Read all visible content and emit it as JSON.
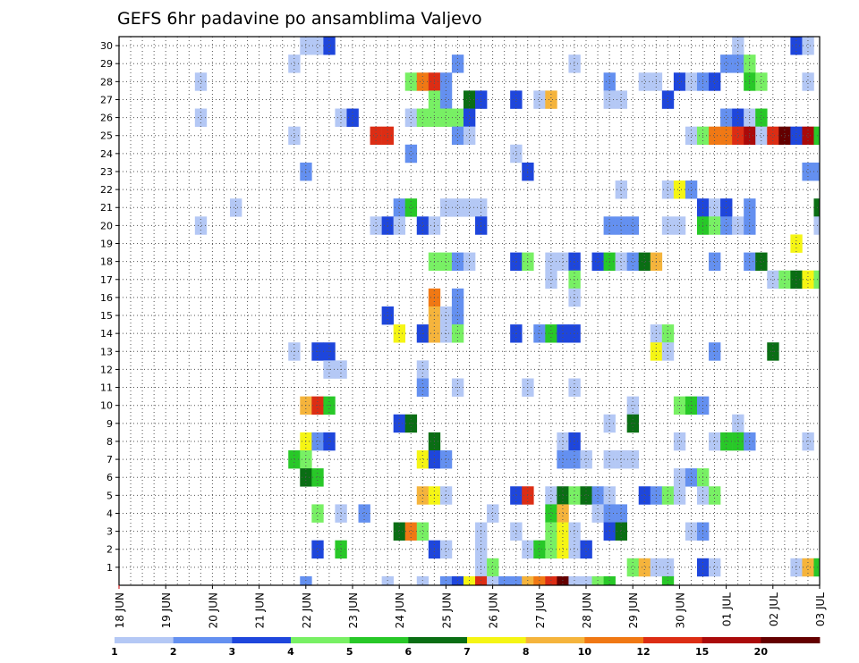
{
  "chart_data": {
    "type": "heatmap",
    "title": "GEFS 6hr padavine po ansamblima Valjevo",
    "xlabel": "",
    "ylabel": "",
    "x_tick_labels": [
      "18 JUN",
      "19 JUN",
      "20 JUN",
      "21 JUN",
      "22 JUN",
      "23 JUN",
      "24 JUN",
      "25 JUN",
      "26 JUN",
      "27 JUN",
      "28 JUN",
      "29 JUN",
      "30 JUN",
      "01 JUL",
      "02 JUL",
      "03 JUL"
    ],
    "x_tick_positions": [
      0,
      4,
      8,
      12,
      16,
      20,
      24,
      28,
      32,
      36,
      40,
      44,
      48,
      52,
      56,
      60
    ],
    "y_tick_labels": [
      "1",
      "2",
      "3",
      "4",
      "5",
      "6",
      "7",
      "8",
      "9",
      "10",
      "11",
      "12",
      "13",
      "14",
      "15",
      "16",
      "17",
      "18",
      "19",
      "20",
      "21",
      "22",
      "23",
      "24",
      "25",
      "26",
      "27",
      "28",
      "29",
      "30"
    ],
    "xlim": [
      0,
      60
    ],
    "ylim": [
      0,
      30
    ],
    "grid": true,
    "colorbar": {
      "labels": [
        "1",
        "2",
        "3",
        "4",
        "5",
        "6",
        "7",
        "8",
        "10",
        "12",
        "15",
        "20"
      ],
      "colors": [
        "#b4c8f5",
        "#6490f0",
        "#1e46dc",
        "#78f064",
        "#28c828",
        "#0a6e14",
        "#f5f514",
        "#f5b43c",
        "#f07814",
        "#dc2d14",
        "#aa0a0a",
        "#640000"
      ]
    },
    "palette": {
      "1": "#b4c8f5",
      "2": "#6490f0",
      "3": "#1e46dc",
      "4": "#78f064",
      "5": "#28c828",
      "6": "#0a6e14",
      "7": "#f5f514",
      "8": "#f5b43c",
      "9": "#f07814",
      "10": "#dc2d14",
      "11": "#aa0a0a",
      "12": "#640000"
    },
    "members": [
      {
        "member": 30,
        "cells": [
          [
            16,
            1
          ],
          [
            17,
            1
          ],
          [
            18,
            3
          ],
          [
            53,
            1
          ],
          [
            58,
            3
          ],
          [
            59,
            1
          ]
        ]
      },
      {
        "member": 29,
        "cells": [
          [
            15,
            1
          ],
          [
            29,
            2
          ],
          [
            39,
            1
          ],
          [
            52,
            2
          ],
          [
            53,
            2
          ],
          [
            54,
            4
          ]
        ]
      },
      {
        "member": 28,
        "cells": [
          [
            7,
            1
          ],
          [
            25,
            4
          ],
          [
            26,
            9
          ],
          [
            27,
            10
          ],
          [
            28,
            2
          ],
          [
            42,
            2
          ],
          [
            45,
            1
          ],
          [
            46,
            1
          ],
          [
            48,
            3
          ],
          [
            49,
            1
          ],
          [
            50,
            2
          ],
          [
            51,
            3
          ],
          [
            54,
            5
          ],
          [
            55,
            4
          ],
          [
            59,
            1
          ]
        ]
      },
      {
        "member": 27,
        "cells": [
          [
            27,
            4
          ],
          [
            28,
            2
          ],
          [
            30,
            6
          ],
          [
            31,
            3
          ],
          [
            34,
            3
          ],
          [
            36,
            1
          ],
          [
            37,
            8
          ],
          [
            42,
            1
          ],
          [
            43,
            1
          ],
          [
            47,
            3
          ]
        ]
      },
      {
        "member": 26,
        "cells": [
          [
            7,
            1
          ],
          [
            19,
            1
          ],
          [
            20,
            3
          ],
          [
            25,
            1
          ],
          [
            26,
            4
          ],
          [
            27,
            4
          ],
          [
            28,
            4
          ],
          [
            29,
            4
          ],
          [
            30,
            3
          ],
          [
            52,
            2
          ],
          [
            53,
            3
          ],
          [
            54,
            1
          ],
          [
            55,
            5
          ]
        ]
      },
      {
        "member": 25,
        "cells": [
          [
            15,
            1
          ],
          [
            22,
            10
          ],
          [
            23,
            10
          ],
          [
            29,
            2
          ],
          [
            30,
            1
          ],
          [
            49,
            1
          ],
          [
            50,
            4
          ],
          [
            51,
            9
          ],
          [
            52,
            9
          ],
          [
            53,
            10
          ],
          [
            54,
            11
          ],
          [
            55,
            1
          ],
          [
            56,
            10
          ],
          [
            57,
            12
          ],
          [
            58,
            3
          ],
          [
            59,
            11
          ],
          [
            60,
            5
          ]
        ]
      },
      {
        "member": 24,
        "cells": [
          [
            25,
            2
          ],
          [
            34,
            1
          ]
        ]
      },
      {
        "member": 23,
        "cells": [
          [
            16,
            2
          ],
          [
            35,
            3
          ],
          [
            59,
            2
          ],
          [
            60,
            2
          ]
        ]
      },
      {
        "member": 22,
        "cells": [
          [
            43,
            1
          ],
          [
            47,
            1
          ],
          [
            48,
            7
          ],
          [
            49,
            2
          ]
        ]
      },
      {
        "member": 21,
        "cells": [
          [
            10,
            1
          ],
          [
            24,
            2
          ],
          [
            25,
            5
          ],
          [
            28,
            1
          ],
          [
            29,
            1
          ],
          [
            30,
            1
          ],
          [
            31,
            1
          ],
          [
            50,
            3
          ],
          [
            51,
            1
          ],
          [
            52,
            3
          ],
          [
            54,
            2
          ],
          [
            60,
            6
          ]
        ]
      },
      {
        "member": 20,
        "cells": [
          [
            7,
            1
          ],
          [
            22,
            1
          ],
          [
            23,
            3
          ],
          [
            24,
            1
          ],
          [
            26,
            3
          ],
          [
            27,
            1
          ],
          [
            31,
            3
          ],
          [
            42,
            2
          ],
          [
            43,
            2
          ],
          [
            44,
            2
          ],
          [
            47,
            1
          ],
          [
            48,
            1
          ],
          [
            50,
            5
          ],
          [
            51,
            4
          ],
          [
            52,
            2
          ],
          [
            53,
            1
          ],
          [
            54,
            2
          ],
          [
            60,
            1
          ]
        ]
      },
      {
        "member": 19,
        "cells": [
          [
            58,
            7
          ]
        ]
      },
      {
        "member": 18,
        "cells": [
          [
            27,
            4
          ],
          [
            28,
            4
          ],
          [
            29,
            2
          ],
          [
            30,
            1
          ],
          [
            34,
            3
          ],
          [
            35,
            4
          ],
          [
            37,
            1
          ],
          [
            38,
            1
          ],
          [
            39,
            3
          ],
          [
            41,
            3
          ],
          [
            42,
            5
          ],
          [
            43,
            1
          ],
          [
            44,
            2
          ],
          [
            45,
            6
          ],
          [
            46,
            8
          ],
          [
            51,
            2
          ],
          [
            54,
            2
          ],
          [
            55,
            6
          ]
        ]
      },
      {
        "member": 17,
        "cells": [
          [
            37,
            1
          ],
          [
            39,
            4
          ],
          [
            56,
            1
          ],
          [
            57,
            4
          ],
          [
            58,
            6
          ],
          [
            59,
            7
          ],
          [
            60,
            4
          ]
        ]
      },
      {
        "member": 16,
        "cells": [
          [
            27,
            9
          ],
          [
            29,
            2
          ],
          [
            39,
            1
          ]
        ]
      },
      {
        "member": 15,
        "cells": [
          [
            23,
            3
          ],
          [
            27,
            8
          ],
          [
            28,
            1
          ],
          [
            29,
            2
          ]
        ]
      },
      {
        "member": 14,
        "cells": [
          [
            24,
            7
          ],
          [
            26,
            3
          ],
          [
            27,
            8
          ],
          [
            28,
            1
          ],
          [
            29,
            4
          ],
          [
            34,
            3
          ],
          [
            36,
            2
          ],
          [
            37,
            5
          ],
          [
            38,
            3
          ],
          [
            39,
            3
          ],
          [
            46,
            1
          ],
          [
            47,
            4
          ]
        ]
      },
      {
        "member": 13,
        "cells": [
          [
            15,
            1
          ],
          [
            17,
            3
          ],
          [
            18,
            3
          ],
          [
            46,
            7
          ],
          [
            47,
            1
          ],
          [
            51,
            2
          ],
          [
            56,
            6
          ]
        ]
      },
      {
        "member": 12,
        "cells": [
          [
            18,
            1
          ],
          [
            19,
            1
          ],
          [
            26,
            1
          ]
        ]
      },
      {
        "member": 11,
        "cells": [
          [
            26,
            2
          ],
          [
            29,
            1
          ],
          [
            35,
            1
          ],
          [
            39,
            1
          ]
        ]
      },
      {
        "member": 10,
        "cells": [
          [
            16,
            8
          ],
          [
            17,
            10
          ],
          [
            18,
            5
          ],
          [
            44,
            1
          ],
          [
            48,
            4
          ],
          [
            49,
            5
          ],
          [
            50,
            2
          ]
        ]
      },
      {
        "member": 9,
        "cells": [
          [
            24,
            3
          ],
          [
            25,
            6
          ],
          [
            42,
            1
          ],
          [
            44,
            6
          ],
          [
            53,
            1
          ]
        ]
      },
      {
        "member": 8,
        "cells": [
          [
            16,
            7
          ],
          [
            17,
            2
          ],
          [
            18,
            3
          ],
          [
            27,
            6
          ],
          [
            38,
            1
          ],
          [
            39,
            3
          ],
          [
            48,
            1
          ],
          [
            51,
            1
          ],
          [
            52,
            5
          ],
          [
            53,
            5
          ],
          [
            54,
            2
          ],
          [
            59,
            1
          ]
        ]
      },
      {
        "member": 7,
        "cells": [
          [
            15,
            5
          ],
          [
            16,
            4
          ],
          [
            26,
            7
          ],
          [
            27,
            3
          ],
          [
            28,
            2
          ],
          [
            38,
            2
          ],
          [
            39,
            2
          ],
          [
            40,
            1
          ],
          [
            42,
            1
          ],
          [
            43,
            1
          ],
          [
            44,
            1
          ]
        ]
      },
      {
        "member": 6,
        "cells": [
          [
            16,
            6
          ],
          [
            17,
            5
          ],
          [
            48,
            1
          ],
          [
            49,
            2
          ],
          [
            50,
            4
          ]
        ]
      },
      {
        "member": 5,
        "cells": [
          [
            26,
            8
          ],
          [
            27,
            7
          ],
          [
            28,
            1
          ],
          [
            34,
            3
          ],
          [
            35,
            10
          ],
          [
            37,
            1
          ],
          [
            38,
            6
          ],
          [
            39,
            4
          ],
          [
            40,
            6
          ],
          [
            41,
            2
          ],
          [
            42,
            1
          ],
          [
            45,
            3
          ],
          [
            46,
            2
          ],
          [
            47,
            4
          ],
          [
            48,
            1
          ],
          [
            50,
            1
          ],
          [
            51,
            4
          ]
        ]
      },
      {
        "member": 4,
        "cells": [
          [
            17,
            4
          ],
          [
            19,
            1
          ],
          [
            21,
            2
          ],
          [
            32,
            1
          ],
          [
            37,
            5
          ],
          [
            38,
            8
          ],
          [
            41,
            1
          ],
          [
            42,
            2
          ],
          [
            43,
            2
          ]
        ]
      },
      {
        "member": 3,
        "cells": [
          [
            24,
            6
          ],
          [
            25,
            9
          ],
          [
            26,
            4
          ],
          [
            31,
            1
          ],
          [
            34,
            1
          ],
          [
            37,
            4
          ],
          [
            38,
            7
          ],
          [
            39,
            1
          ],
          [
            42,
            3
          ],
          [
            43,
            6
          ],
          [
            49,
            1
          ],
          [
            50,
            2
          ]
        ]
      },
      {
        "member": 2,
        "cells": [
          [
            17,
            3
          ],
          [
            19,
            5
          ],
          [
            27,
            3
          ],
          [
            28,
            1
          ],
          [
            31,
            1
          ],
          [
            35,
            1
          ],
          [
            36,
            5
          ],
          [
            37,
            4
          ],
          [
            38,
            7
          ],
          [
            39,
            1
          ],
          [
            40,
            3
          ]
        ]
      },
      {
        "member": 1,
        "cells": [
          [
            31,
            1
          ],
          [
            32,
            4
          ],
          [
            44,
            4
          ],
          [
            45,
            8
          ],
          [
            46,
            1
          ],
          [
            47,
            1
          ],
          [
            50,
            3
          ],
          [
            51,
            1
          ],
          [
            58,
            1
          ],
          [
            59,
            8
          ],
          [
            60,
            5
          ]
        ]
      },
      {
        "member": 0,
        "cells": [
          [
            16,
            2
          ],
          [
            23,
            1
          ],
          [
            26,
            1
          ],
          [
            28,
            2
          ],
          [
            29,
            3
          ],
          [
            30,
            7
          ],
          [
            31,
            10
          ],
          [
            32,
            1
          ],
          [
            33,
            2
          ],
          [
            34,
            2
          ],
          [
            35,
            8
          ],
          [
            36,
            9
          ],
          [
            37,
            10
          ],
          [
            38,
            12
          ],
          [
            39,
            1
          ],
          [
            40,
            1
          ],
          [
            41,
            4
          ],
          [
            42,
            5
          ],
          [
            47,
            5
          ]
        ]
      }
    ]
  }
}
